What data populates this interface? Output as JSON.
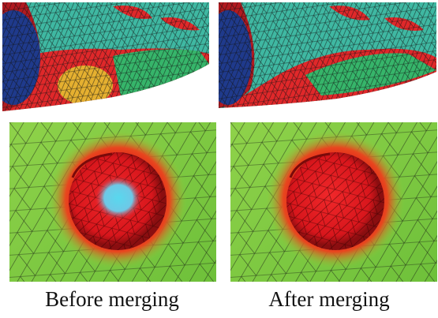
{
  "captions": {
    "before": "Before merging",
    "after": "After merging"
  }
}
